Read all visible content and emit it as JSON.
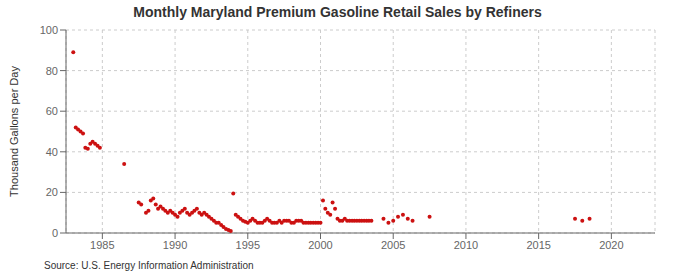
{
  "chart_data": {
    "type": "scatter",
    "title": "Monthly Maryland Premium Gasoline Retail Sales by Refiners",
    "y_label": "Thousand Gallons per Day",
    "annotations": [
      "Source: U.S. Energy Information Administration"
    ],
    "color": "#cc1111",
    "grid": true,
    "xlim": [
      1982.5,
      2023.0
    ],
    "ylim": [
      0,
      100
    ],
    "yticks": [
      0,
      20,
      40,
      60,
      80,
      100
    ],
    "xticks": [
      1985,
      1990,
      1995,
      2000,
      2005,
      2010,
      2015,
      2020
    ],
    "x": [
      1983.0,
      1983.17,
      1983.33,
      1983.5,
      1983.67,
      1983.83,
      1984.0,
      1984.17,
      1984.33,
      1984.5,
      1984.67,
      1984.83,
      1986.5,
      1987.5,
      1987.67,
      1988.0,
      1988.17,
      1988.33,
      1988.5,
      1988.67,
      1988.83,
      1989.0,
      1989.17,
      1989.33,
      1989.5,
      1989.67,
      1989.83,
      1990.0,
      1990.17,
      1990.33,
      1990.5,
      1990.67,
      1990.83,
      1991.0,
      1991.17,
      1991.33,
      1991.5,
      1991.67,
      1991.83,
      1992.0,
      1992.17,
      1992.33,
      1992.5,
      1992.67,
      1992.83,
      1993.0,
      1993.17,
      1993.33,
      1993.5,
      1993.67,
      1993.83,
      1994.0,
      1994.17,
      1994.33,
      1994.5,
      1994.67,
      1994.83,
      1995.0,
      1995.17,
      1995.33,
      1995.5,
      1995.67,
      1995.83,
      1996.0,
      1996.17,
      1996.33,
      1996.5,
      1996.67,
      1996.83,
      1997.0,
      1997.17,
      1997.33,
      1997.5,
      1997.67,
      1997.83,
      1998.0,
      1998.17,
      1998.33,
      1998.5,
      1998.67,
      1998.83,
      1999.0,
      1999.17,
      1999.33,
      1999.5,
      1999.67,
      1999.83,
      2000.0,
      2000.17,
      2000.33,
      2000.5,
      2000.67,
      2000.83,
      2001.0,
      2001.17,
      2001.33,
      2001.5,
      2001.67,
      2001.83,
      2002.0,
      2002.17,
      2002.33,
      2002.5,
      2002.67,
      2002.83,
      2003.0,
      2003.17,
      2003.33,
      2003.5,
      2004.33,
      2004.67,
      2005.0,
      2005.33,
      2005.67,
      2006.0,
      2006.33,
      2007.5,
      2017.5,
      2018.0,
      2018.5
    ],
    "values": [
      89.0,
      52.0,
      51.0,
      50.0,
      49.0,
      42.0,
      41.5,
      44.0,
      45.0,
      44.0,
      43.0,
      42.0,
      34.0,
      15.0,
      14.0,
      10.0,
      11.0,
      16.0,
      17.0,
      14.0,
      12.0,
      13.0,
      12.0,
      11.0,
      10.0,
      11.0,
      10.0,
      9.0,
      8.0,
      10.0,
      11.0,
      12.0,
      10.0,
      9.0,
      10.0,
      11.0,
      12.0,
      10.0,
      9.0,
      10.0,
      9.0,
      8.0,
      7.0,
      6.0,
      5.0,
      5.0,
      4.0,
      3.0,
      2.0,
      1.5,
      1.0,
      19.5,
      9.0,
      8.0,
      7.0,
      6.0,
      5.5,
      5.0,
      6.0,
      7.0,
      6.0,
      5.0,
      5.0,
      5.0,
      6.0,
      7.0,
      6.0,
      5.0,
      5.0,
      5.0,
      6.0,
      5.0,
      6.0,
      6.0,
      6.0,
      5.0,
      5.0,
      6.0,
      6.0,
      6.0,
      5.0,
      5.0,
      5.0,
      5.0,
      5.0,
      5.0,
      5.0,
      5.0,
      16.0,
      12.0,
      10.0,
      9.0,
      15.0,
      12.0,
      7.0,
      6.0,
      6.0,
      7.0,
      6.0,
      6.0,
      6.0,
      6.0,
      6.0,
      6.0,
      6.0,
      6.0,
      6.0,
      6.0,
      6.0,
      7.0,
      5.0,
      6.0,
      8.0,
      9.0,
      7.0,
      6.0,
      8.0,
      7.0,
      6.0,
      7.0
    ]
  }
}
